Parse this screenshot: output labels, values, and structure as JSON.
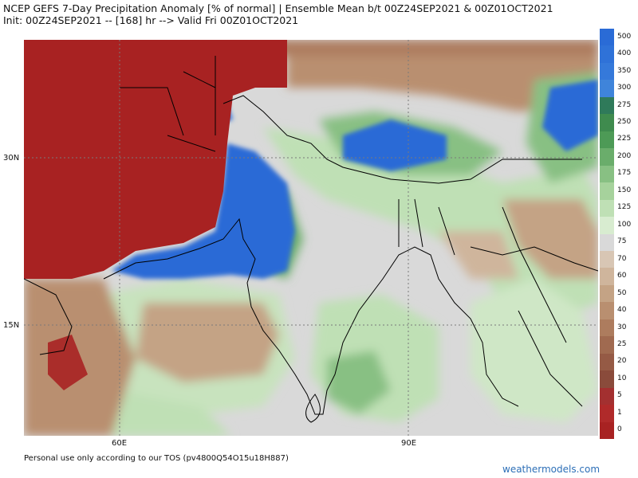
{
  "header": {
    "line1": "NCEP GEFS 7-Day Precipitation Anomaly [% of normal] | Ensemble Mean b/t 00Z24SEP2021 & 00Z01OCT2021",
    "line2": "Init: 00Z24SEP2021 -- [168] hr --> Valid Fri 00Z01OCT2021"
  },
  "map": {
    "lat_labels": [
      "30N",
      "15N"
    ],
    "lon_labels": [
      "60E",
      "90E"
    ]
  },
  "colorbar": {
    "levels": [
      {
        "label": "500",
        "color": "#2a6bd6"
      },
      {
        "label": "400",
        "color": "#2f72d8"
      },
      {
        "label": "350",
        "color": "#3579da"
      },
      {
        "label": "300",
        "color": "#3f84da"
      },
      {
        "label": "275",
        "color": "#2f7a5a"
      },
      {
        "label": "250",
        "color": "#3f8b4e"
      },
      {
        "label": "225",
        "color": "#4d9a56"
      },
      {
        "label": "200",
        "color": "#6aad6b"
      },
      {
        "label": "175",
        "color": "#88c083"
      },
      {
        "label": "150",
        "color": "#a6d29c"
      },
      {
        "label": "125",
        "color": "#bfe0b5"
      },
      {
        "label": "100",
        "color": "#d8ecd0"
      },
      {
        "label": "75",
        "color": "#d9d9d9"
      },
      {
        "label": "70",
        "color": "#d8c6b4"
      },
      {
        "label": "60",
        "color": "#cfb59c"
      },
      {
        "label": "50",
        "color": "#c4a385"
      },
      {
        "label": "40",
        "color": "#b98f70"
      },
      {
        "label": "30",
        "color": "#ad7c5e"
      },
      {
        "label": "25",
        "color": "#a06a50"
      },
      {
        "label": "20",
        "color": "#955a45"
      },
      {
        "label": "10",
        "color": "#8a4b3b"
      },
      {
        "label": "5",
        "color": "#a33030"
      },
      {
        "label": "1",
        "color": "#b02a2a"
      },
      {
        "label": "0",
        "color": "#a82222"
      }
    ]
  },
  "footer": {
    "tos": "Personal use only according to our TOS (pv4800Q54O15u18H887)",
    "brand": "weathermodels.com"
  }
}
